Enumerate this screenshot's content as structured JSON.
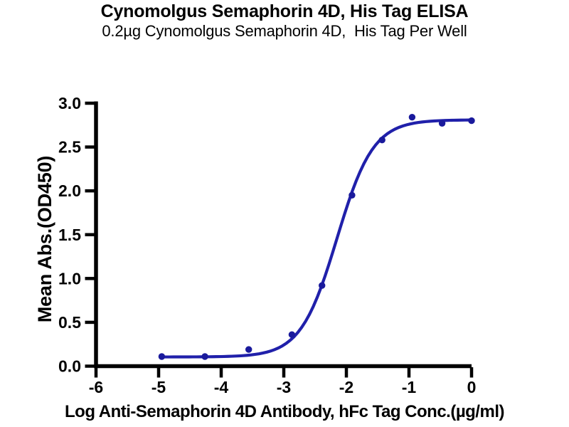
{
  "header": {
    "title": "Cynomolgus Semaphorin 4D, His Tag ELISA",
    "subtitle": "0.2µg Cynomolgus Semaphorin 4D,  His Tag Per Well"
  },
  "chart_data": {
    "type": "scatter",
    "title": "Cynomolgus Semaphorin 4D, His Tag ELISA",
    "subtitle": "0.2µg Cynomolgus Semaphorin 4D,  His Tag Per Well",
    "xlabel": "Log Anti-Semaphorin 4D Antibody, hFc Tag Conc.(µg/ml)",
    "ylabel": "Mean Abs.(OD450)",
    "xlim": [
      -6,
      0
    ],
    "ylim": [
      0,
      3
    ],
    "grid": false,
    "legend": "none",
    "x_ticks": [
      -6,
      -5,
      -4,
      -3,
      -2,
      -1,
      0
    ],
    "x_tick_labels": [
      "-6",
      "-5",
      "-4",
      "-3",
      "-2",
      "-1",
      "0"
    ],
    "y_ticks": [
      0,
      0.5,
      1,
      1.5,
      2,
      2.5,
      3
    ],
    "y_tick_labels": [
      "0.0",
      "0.5",
      "1.0",
      "1.5",
      "2.0",
      "2.5",
      "3.0"
    ],
    "series": [
      {
        "name": "Cynomolgus Semaphorin 4D, His Tag",
        "x": [
          -4.95,
          -4.26,
          -3.56,
          -2.87,
          -2.39,
          -1.91,
          -1.43,
          -0.95,
          -0.47,
          0.0
        ],
        "y": [
          0.11,
          0.11,
          0.19,
          0.36,
          0.92,
          1.95,
          2.58,
          2.84,
          2.77,
          2.8
        ]
      }
    ],
    "fit_curve": {
      "model": "4PL",
      "bottom": 0.105,
      "top": 2.81,
      "log_ec50": -2.15,
      "hill": 1.5,
      "x_start": -4.95,
      "x_end": 0.02
    },
    "colors": {
      "curve": "#2020aa",
      "points": "#1a1a9c",
      "axis": "#000000"
    }
  }
}
